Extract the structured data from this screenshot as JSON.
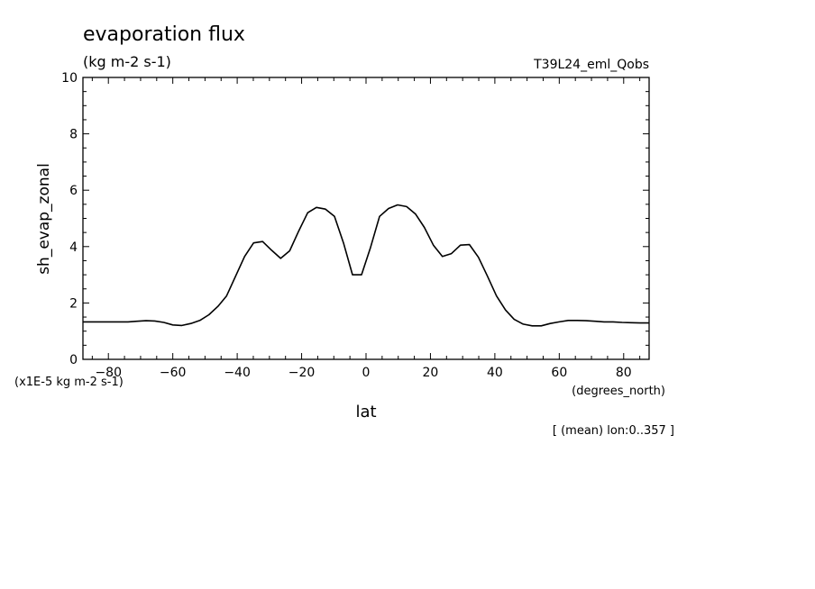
{
  "chart_data": {
    "type": "line",
    "title": "evaporation flux",
    "subtitle": "(kg m-2 s-1)",
    "run_label": "T39L24_eml_Qobs",
    "ylabel": "sh_evap_zonal",
    "xlabel": "lat",
    "y_unit": "(x1E-5 kg m-2 s-1)",
    "x_unit": "(degrees_north)",
    "footnote": "[ (mean) lon:0..357 ]",
    "xlim": [
      -87.9,
      87.9
    ],
    "ylim": [
      0,
      10
    ],
    "xticks": [
      -80,
      -60,
      -40,
      -20,
      0,
      20,
      40,
      60,
      80
    ],
    "xtick_labels": [
      "−80",
      "−60",
      "−40",
      "−20",
      "0",
      "20",
      "40",
      "60",
      "80"
    ],
    "yticks": [
      0,
      2,
      4,
      6,
      8,
      10
    ],
    "ytick_labels": [
      "0",
      "2",
      "4",
      "6",
      "8",
      "10"
    ],
    "grid": false,
    "series": [
      {
        "x": [
          -87.9,
          -85.1,
          -82.3,
          -79.5,
          -76.7,
          -73.9,
          -71.1,
          -68.3,
          -65.6,
          -62.8,
          -60.0,
          -57.2,
          -54.4,
          -51.6,
          -48.8,
          -46.0,
          -43.3,
          -40.5,
          -37.7,
          -34.9,
          -32.1,
          -29.3,
          -26.5,
          -23.7,
          -20.9,
          -18.1,
          -15.4,
          -12.6,
          -9.8,
          -7.0,
          -4.2,
          -1.4,
          1.4,
          4.2,
          7.0,
          9.8,
          12.6,
          15.4,
          18.1,
          20.9,
          23.7,
          26.5,
          29.3,
          32.1,
          34.9,
          37.7,
          40.5,
          43.3,
          46.0,
          48.8,
          51.6,
          54.4,
          57.2,
          60.0,
          62.8,
          65.6,
          68.3,
          71.1,
          73.9,
          76.7,
          79.5,
          82.3,
          85.1,
          87.9
        ],
        "y": [
          1.33,
          1.33,
          1.33,
          1.33,
          1.33,
          1.33,
          1.35,
          1.37,
          1.36,
          1.31,
          1.22,
          1.2,
          1.27,
          1.38,
          1.58,
          1.88,
          2.25,
          2.95,
          3.65,
          4.13,
          4.18,
          3.87,
          3.58,
          3.85,
          4.55,
          5.2,
          5.39,
          5.33,
          5.07,
          4.13,
          3.0,
          3.0,
          3.97,
          5.07,
          5.35,
          5.48,
          5.42,
          5.15,
          4.68,
          4.05,
          3.65,
          3.75,
          4.05,
          4.07,
          3.62,
          2.95,
          2.25,
          1.75,
          1.42,
          1.25,
          1.19,
          1.19,
          1.27,
          1.33,
          1.38,
          1.38,
          1.37,
          1.35,
          1.33,
          1.33,
          1.31,
          1.3,
          1.29,
          1.29
        ]
      }
    ]
  }
}
